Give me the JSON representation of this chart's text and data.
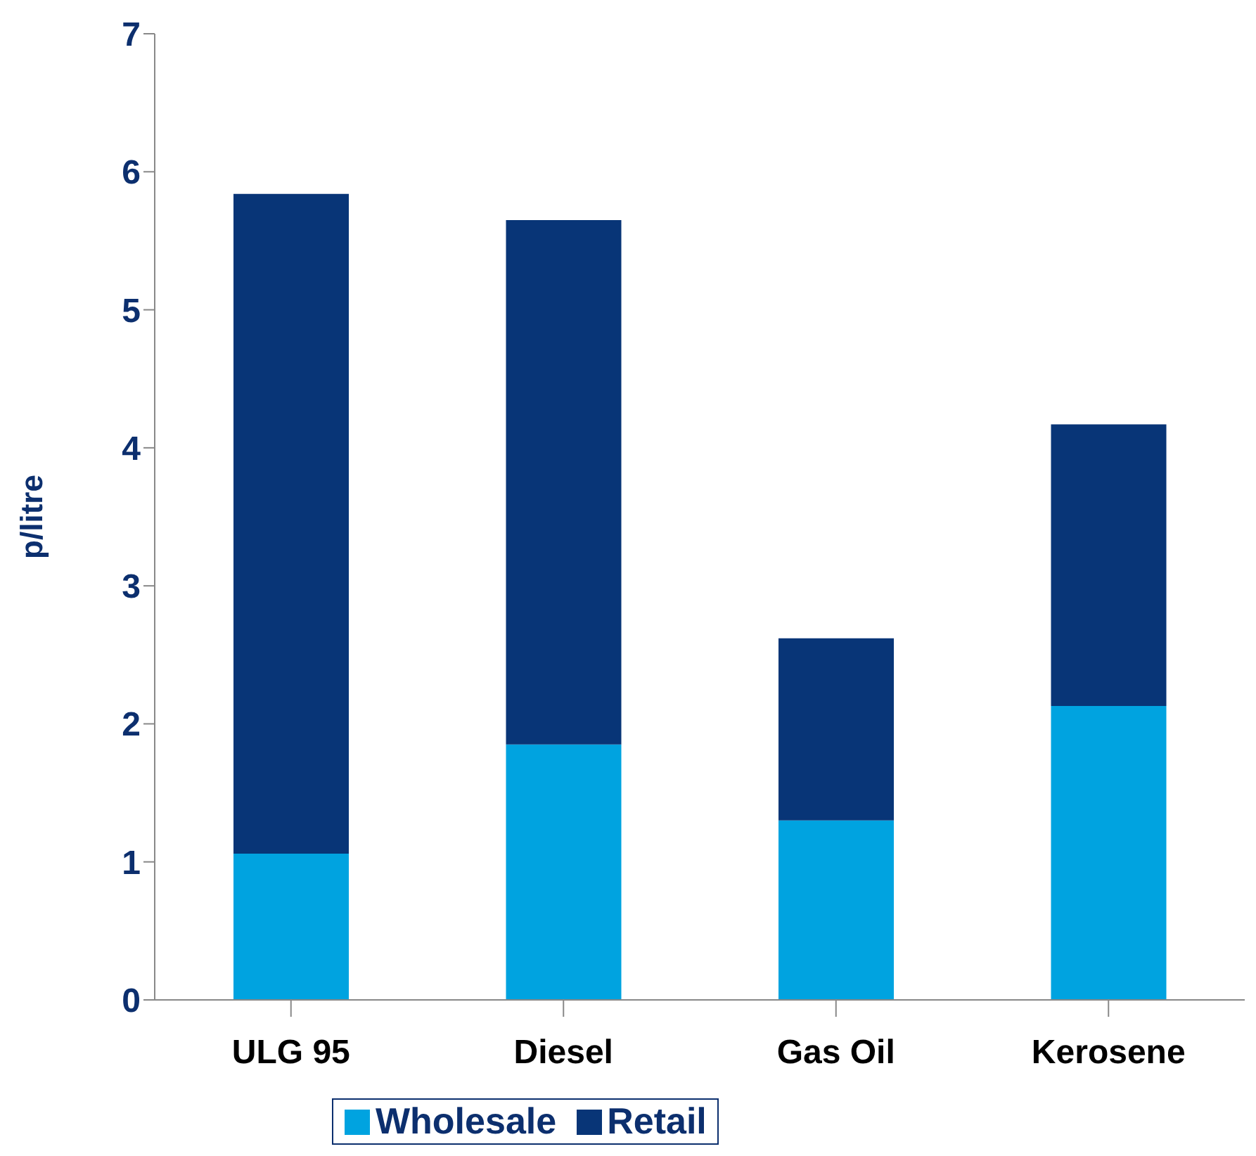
{
  "chart_data": {
    "type": "bar",
    "stacked": true,
    "ylabel": "p/litre",
    "categories": [
      "ULG 95",
      "Diesel",
      "Gas Oil",
      "Kerosene"
    ],
    "series": [
      {
        "name": "Wholesale",
        "color": "#00a3e0",
        "values": [
          1.06,
          1.85,
          1.3,
          2.13
        ]
      },
      {
        "name": "Retail",
        "color": "#083577",
        "values": [
          4.78,
          3.8,
          1.32,
          2.04
        ]
      }
    ],
    "ylim": [
      0,
      7
    ],
    "yticks": [
      0,
      1,
      2,
      3,
      4,
      5,
      6,
      7
    ],
    "grid": false,
    "legend": "bottom"
  }
}
